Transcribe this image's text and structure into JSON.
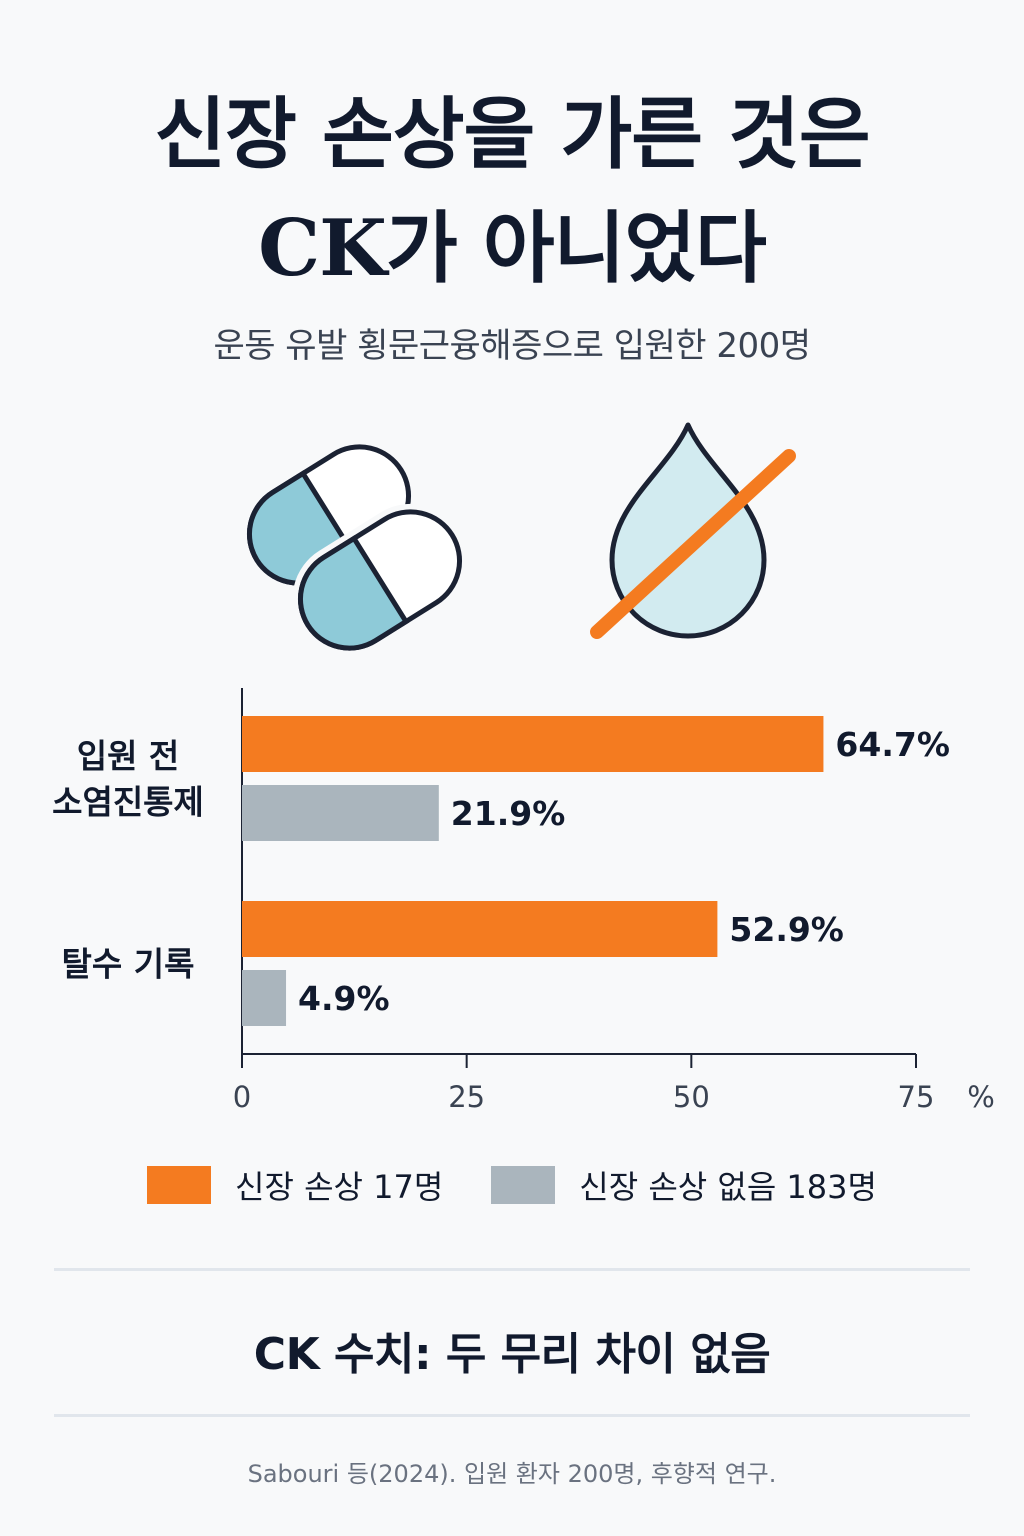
{
  "title": {
    "line1": "신장 손상을 가른 것은",
    "line2": "CK가 아니었다"
  },
  "subtitle": "운동 유발 횡문근융해증으로 입원한 200명",
  "icons": [
    "pill-capsules-icon",
    "crossed-water-drop-icon"
  ],
  "colors": {
    "kidney_injury": "#f47b20",
    "no_kidney_injury": "#aab5bd",
    "icon_blue": "#8ecad8",
    "icon_light_blue": "#d2ebf0",
    "outline": "#1b2233"
  },
  "chart_data": {
    "type": "bar",
    "orientation": "horizontal",
    "categories": [
      [
        "입원 전",
        "소염진통제"
      ],
      [
        "탈수 기록"
      ]
    ],
    "series": [
      {
        "name": "신장 손상 17명",
        "values": [
          64.7,
          52.9
        ],
        "labels": [
          "64.7%",
          "52.9%"
        ],
        "color": "#f47b20"
      },
      {
        "name": "신장 손상 없음 183명",
        "values": [
          21.9,
          4.9
        ],
        "labels": [
          "21.9%",
          "4.9%"
        ],
        "color": "#aab5bd"
      }
    ],
    "xlim": [
      0,
      75
    ],
    "xticks": [
      "0",
      "25",
      "50",
      "75"
    ],
    "xunit": "%",
    "grid": false,
    "legend": "bottom"
  },
  "legend": [
    {
      "label": "신장 손상 17명",
      "color": "#f47b20"
    },
    {
      "label": "신장 손상 없음 183명",
      "color": "#aab5bd"
    }
  ],
  "conclusion": "CK 수치: 두 무리 차이 없음",
  "source": "Sabouri 등(2024). 입원 환자 200명, 후향적 연구."
}
